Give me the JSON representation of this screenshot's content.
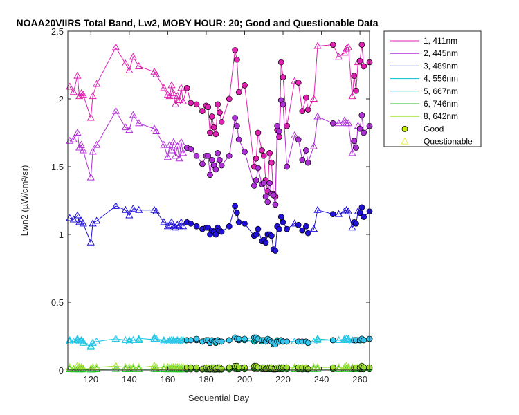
{
  "chart_data": {
    "type": "line",
    "title": "NOAA20VIIRS Total Band, Lw2, MOBY HOUR: 20;  Good and Questionable Data",
    "xlabel": "Sequential Day",
    "ylabel": "Lwn2 (µW/cm²/sr)",
    "xlim": [
      108,
      265
    ],
    "ylim": [
      0,
      2.5
    ],
    "xticks": [
      120,
      140,
      160,
      180,
      200,
      220,
      240,
      260
    ],
    "xtick_labels": [
      "120",
      "140",
      "160",
      "180",
      "200",
      "220",
      "240",
      "260"
    ],
    "yticks": [
      0,
      0.5,
      1,
      1.5,
      2,
      2.5
    ],
    "ytick_labels": [
      "0",
      "0.5",
      "1",
      "1.5",
      "2",
      "2.5"
    ],
    "grid": false,
    "legend_position": "outside-top-right",
    "x": [
      109,
      111,
      113,
      114,
      115,
      116,
      120,
      121,
      123,
      133,
      138,
      140,
      142,
      145,
      153,
      154,
      158,
      160,
      161,
      162,
      163,
      164,
      165,
      166,
      167,
      168,
      170,
      172,
      175,
      178,
      180,
      181,
      182,
      183,
      184,
      185,
      186,
      187,
      188,
      192,
      195,
      196,
      197,
      200,
      205,
      206,
      207,
      209,
      210,
      211,
      212,
      213,
      214,
      215,
      216,
      217,
      218,
      219,
      220,
      222,
      226,
      228,
      230,
      232,
      233,
      236,
      238,
      246,
      249,
      252,
      253,
      254,
      256,
      257,
      258,
      259,
      260,
      261,
      262,
      265
    ],
    "quality": [
      "Q",
      "Q",
      "Q",
      "Q",
      "Q",
      "Q",
      "Q",
      "Q",
      "Q",
      "Q",
      "Q",
      "Q",
      "Q",
      "Q",
      "Q",
      "Q",
      "Q",
      "Q",
      "Q",
      "Q",
      "Q",
      "Q",
      "Q",
      "Q",
      "Q",
      "Q",
      "G",
      "G",
      "G",
      "G",
      "G",
      "G",
      "G",
      "G",
      "G",
      "G",
      "G",
      "G",
      "G",
      "G",
      "G",
      "G",
      "G",
      "G",
      "G",
      "G",
      "G",
      "G",
      "G",
      "G",
      "G",
      "G",
      "G",
      "G",
      "G",
      "G",
      "G",
      "G",
      "G",
      "G",
      "Q",
      "G",
      "G",
      "G",
      "G",
      "Q",
      "Q",
      "G",
      "Q",
      "Q",
      "Q",
      "Q",
      "Q",
      "G",
      "G",
      "Q",
      "G",
      "G",
      "G",
      "G"
    ],
    "series": [
      {
        "name": "1, 411nm",
        "color": "#e020b0",
        "values": [
          2.09,
          2.05,
          2.17,
          2.02,
          2.04,
          2.03,
          1.86,
          2.02,
          2.11,
          2.38,
          2.26,
          2.21,
          2.31,
          2.24,
          2.2,
          2.18,
          2.08,
          2.03,
          2.02,
          2.1,
          2.04,
          1.96,
          2.02,
          1.99,
          2.08,
          1.98,
          2.08,
          1.97,
          1.96,
          1.91,
          1.95,
          1.94,
          1.75,
          1.87,
          1.79,
          1.74,
          1.96,
          1.9,
          1.83,
          2.0,
          2.36,
          2.29,
          2.05,
          2.1,
          1.5,
          1.56,
          1.75,
          1.62,
          1.58,
          1.4,
          1.32,
          1.6,
          1.53,
          1.3,
          1.28,
          1.77,
          1.72,
          2.27,
          2.16,
          1.8,
          2.13,
          2.12,
          1.91,
          2.01,
          1.92,
          2.0,
          2.39,
          2.4,
          2.31,
          2.34,
          2.37,
          2.38,
          2.02,
          2.17,
          2.06,
          2.27,
          2.28,
          2.4,
          2.24,
          2.27
        ]
      },
      {
        "name": "2, 445nm",
        "color": "#b030d8",
        "values": [
          1.69,
          1.7,
          1.75,
          1.64,
          1.66,
          1.62,
          1.42,
          1.61,
          1.66,
          1.91,
          1.79,
          1.77,
          1.88,
          1.82,
          1.78,
          1.76,
          1.66,
          1.57,
          1.66,
          1.62,
          1.68,
          1.58,
          1.65,
          1.56,
          1.68,
          1.6,
          1.64,
          1.63,
          1.58,
          1.52,
          1.58,
          1.58,
          1.44,
          1.55,
          1.51,
          1.48,
          1.6,
          1.55,
          1.51,
          1.58,
          1.86,
          1.8,
          1.7,
          1.61,
          1.36,
          1.4,
          1.49,
          1.37,
          1.38,
          1.28,
          1.24,
          1.38,
          1.3,
          1.29,
          1.22,
          1.8,
          1.76,
          1.99,
          1.96,
          1.5,
          1.73,
          1.7,
          1.55,
          1.62,
          1.53,
          1.65,
          1.87,
          1.82,
          1.82,
          1.84,
          1.82,
          1.82,
          1.6,
          1.69,
          1.64,
          1.8,
          1.78,
          1.88,
          1.75,
          1.8
        ]
      },
      {
        "name": "3, 489nm",
        "color": "#2010d8",
        "values": [
          1.12,
          1.11,
          1.14,
          1.09,
          1.1,
          1.08,
          0.94,
          1.08,
          1.1,
          1.21,
          1.18,
          1.14,
          1.19,
          1.18,
          1.18,
          1.17,
          1.09,
          1.06,
          1.07,
          1.09,
          1.06,
          1.05,
          1.07,
          1.06,
          1.09,
          1.06,
          1.09,
          1.08,
          1.06,
          1.04,
          1.05,
          1.05,
          1.0,
          1.03,
          1.02,
          1.0,
          1.05,
          1.03,
          1.02,
          1.06,
          1.21,
          1.16,
          1.09,
          1.08,
          0.99,
          1.0,
          1.04,
          0.95,
          0.96,
          0.94,
          1.0,
          1.0,
          0.99,
          0.89,
          0.88,
          1.06,
          1.04,
          1.13,
          1.09,
          1.04,
          1.08,
          1.07,
          1.03,
          1.06,
          1.01,
          1.04,
          1.18,
          1.15,
          1.15,
          1.17,
          1.18,
          1.17,
          1.05,
          1.09,
          1.08,
          1.17,
          1.16,
          1.2,
          1.13,
          1.17
        ]
      },
      {
        "name": "4, 556nm",
        "color": "#00c0c8",
        "values": [
          0.21,
          0.21,
          0.22,
          0.21,
          0.21,
          0.2,
          0.17,
          0.2,
          0.21,
          0.23,
          0.22,
          0.21,
          0.22,
          0.22,
          0.23,
          0.23,
          0.21,
          0.21,
          0.21,
          0.22,
          0.21,
          0.21,
          0.21,
          0.21,
          0.22,
          0.21,
          0.22,
          0.22,
          0.22,
          0.21,
          0.22,
          0.22,
          0.2,
          0.21,
          0.21,
          0.2,
          0.22,
          0.21,
          0.21,
          0.22,
          0.24,
          0.23,
          0.22,
          0.22,
          0.21,
          0.22,
          0.23,
          0.21,
          0.22,
          0.21,
          0.22,
          0.22,
          0.21,
          0.19,
          0.19,
          0.22,
          0.21,
          0.22,
          0.21,
          0.21,
          0.21,
          0.21,
          0.21,
          0.21,
          0.2,
          0.21,
          0.23,
          0.22,
          0.22,
          0.22,
          0.23,
          0.23,
          0.21,
          0.22,
          0.22,
          0.22,
          0.22,
          0.23,
          0.22,
          0.23
        ]
      },
      {
        "name": "5, 667nm",
        "color": "#30c8f0",
        "values": [
          0.22,
          0.21,
          0.23,
          0.21,
          0.22,
          0.21,
          0.18,
          0.2,
          0.21,
          0.23,
          0.22,
          0.22,
          0.22,
          0.23,
          0.24,
          0.23,
          0.22,
          0.21,
          0.22,
          0.22,
          0.22,
          0.21,
          0.22,
          0.21,
          0.22,
          0.22,
          0.22,
          0.22,
          0.23,
          0.21,
          0.22,
          0.22,
          0.2,
          0.22,
          0.21,
          0.21,
          0.22,
          0.21,
          0.21,
          0.22,
          0.24,
          0.23,
          0.23,
          0.23,
          0.24,
          0.24,
          0.23,
          0.22,
          0.22,
          0.21,
          0.23,
          0.22,
          0.21,
          0.2,
          0.19,
          0.21,
          0.21,
          0.22,
          0.21,
          0.21,
          0.21,
          0.21,
          0.21,
          0.21,
          0.2,
          0.21,
          0.22,
          0.22,
          0.22,
          0.23,
          0.23,
          0.22,
          0.22,
          0.22,
          0.22,
          0.21,
          0.22,
          0.23,
          0.22,
          0.23
        ]
      },
      {
        "name": "6, 746nm",
        "color": "#20c020",
        "values": [
          0.005,
          0.004,
          0.006,
          0.004,
          0.005,
          0.004,
          0.003,
          0.004,
          0.005,
          0.007,
          0.006,
          0.005,
          0.006,
          0.006,
          0.007,
          0.006,
          0.005,
          0.004,
          0.005,
          0.005,
          0.005,
          0.004,
          0.005,
          0.004,
          0.005,
          0.004,
          0.005,
          0.005,
          0.005,
          0.004,
          0.005,
          0.005,
          0.004,
          0.005,
          0.004,
          0.004,
          0.005,
          0.004,
          0.004,
          0.005,
          0.008,
          0.007,
          0.006,
          0.006,
          0.008,
          0.009,
          0.008,
          0.007,
          0.007,
          0.006,
          0.007,
          0.007,
          0.006,
          0.005,
          0.005,
          0.006,
          0.006,
          0.007,
          0.006,
          0.006,
          0.006,
          0.006,
          0.005,
          0.006,
          0.005,
          0.006,
          0.007,
          0.006,
          0.006,
          0.007,
          0.007,
          0.007,
          0.005,
          0.006,
          0.006,
          0.006,
          0.006,
          0.007,
          0.006,
          0.007
        ]
      },
      {
        "name": "8, 642nm",
        "color": "#a0e030",
        "values": [
          0.02,
          0.01,
          0.03,
          0.02,
          0.02,
          0.01,
          0.01,
          0.02,
          0.02,
          0.03,
          0.02,
          0.02,
          0.02,
          0.02,
          0.03,
          0.02,
          0.02,
          0.02,
          0.02,
          0.02,
          0.02,
          0.02,
          0.02,
          0.02,
          0.02,
          0.02,
          0.02,
          0.02,
          0.02,
          0.01,
          0.02,
          0.02,
          0.01,
          0.02,
          0.02,
          0.01,
          0.02,
          0.02,
          0.01,
          0.02,
          0.03,
          0.03,
          0.02,
          0.02,
          0.03,
          0.03,
          0.02,
          0.02,
          0.02,
          0.01,
          0.02,
          0.02,
          0.02,
          0.01,
          0.01,
          0.02,
          0.02,
          0.02,
          0.02,
          0.02,
          0.02,
          0.02,
          0.02,
          0.02,
          0.01,
          0.02,
          0.02,
          0.02,
          0.02,
          0.02,
          0.03,
          0.02,
          0.02,
          0.02,
          0.02,
          0.02,
          0.02,
          0.03,
          0.02,
          0.02
        ]
      }
    ],
    "markers": [
      {
        "name": "Good",
        "shape": "circle",
        "fill": "#c8f000",
        "stroke": "#000000"
      },
      {
        "name": "Questionable",
        "shape": "triangle",
        "fill": "none",
        "stroke": "#e8f040"
      }
    ]
  }
}
